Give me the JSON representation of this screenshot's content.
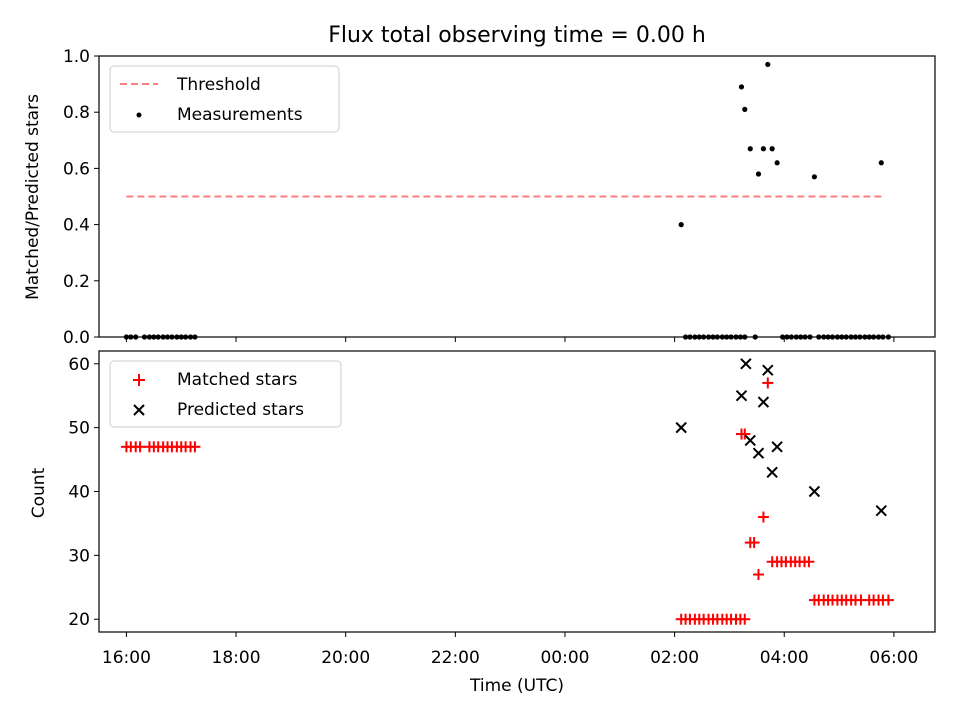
{
  "figure": {
    "title": "Flux total observing time = 0.00 h",
    "xlabel": "Time (UTC)",
    "x_ticks": [
      "16:00",
      "18:00",
      "20:00",
      "22:00",
      "00:00",
      "02:00",
      "04:00",
      "06:00"
    ]
  },
  "chart_data": [
    {
      "type": "scatter",
      "panel": "top",
      "ylabel": "Matched/Predicted stars",
      "ylim": [
        0.0,
        1.0
      ],
      "y_ticks": [
        "0.0",
        "0.2",
        "0.4",
        "0.6",
        "0.8",
        "1.0"
      ],
      "xlim_hours": [
        15.5,
        30.75
      ],
      "legend": {
        "placement": "upper-left",
        "entries": [
          "Threshold",
          "Measurements"
        ]
      },
      "threshold": {
        "name": "Threshold",
        "value": 0.5,
        "x_range_hours": [
          16.0,
          29.8
        ],
        "color": "#ff7f7f",
        "style": "dashed"
      },
      "measurements": {
        "name": "Measurements",
        "color": "#000000",
        "points_hours_value": [
          [
            16.0,
            0
          ],
          [
            16.08,
            0
          ],
          [
            16.17,
            0
          ],
          [
            16.33,
            0
          ],
          [
            16.42,
            0
          ],
          [
            16.5,
            0
          ],
          [
            16.58,
            0
          ],
          [
            16.67,
            0
          ],
          [
            16.75,
            0
          ],
          [
            16.83,
            0
          ],
          [
            16.92,
            0
          ],
          [
            17.0,
            0
          ],
          [
            17.08,
            0
          ],
          [
            17.17,
            0
          ],
          [
            17.25,
            0
          ],
          [
            26.12,
            0.4
          ],
          [
            26.2,
            0
          ],
          [
            26.28,
            0
          ],
          [
            26.37,
            0
          ],
          [
            26.45,
            0
          ],
          [
            26.53,
            0
          ],
          [
            26.62,
            0
          ],
          [
            26.7,
            0
          ],
          [
            26.78,
            0
          ],
          [
            26.87,
            0
          ],
          [
            26.95,
            0
          ],
          [
            27.03,
            0
          ],
          [
            27.12,
            0
          ],
          [
            27.2,
            0
          ],
          [
            27.28,
            0
          ],
          [
            27.22,
            0.89
          ],
          [
            27.28,
            0.81
          ],
          [
            27.38,
            0.67
          ],
          [
            27.47,
            0
          ],
          [
            27.53,
            0.58
          ],
          [
            27.62,
            0.67
          ],
          [
            27.7,
            0.97
          ],
          [
            27.78,
            0.67
          ],
          [
            27.87,
            0.62
          ],
          [
            27.97,
            0
          ],
          [
            28.05,
            0
          ],
          [
            28.13,
            0
          ],
          [
            28.22,
            0
          ],
          [
            28.3,
            0
          ],
          [
            28.38,
            0
          ],
          [
            28.47,
            0
          ],
          [
            28.55,
            0.57
          ],
          [
            28.63,
            0
          ],
          [
            28.72,
            0
          ],
          [
            28.8,
            0
          ],
          [
            28.88,
            0
          ],
          [
            28.97,
            0
          ],
          [
            29.05,
            0
          ],
          [
            29.13,
            0
          ],
          [
            29.22,
            0
          ],
          [
            29.3,
            0
          ],
          [
            29.38,
            0
          ],
          [
            29.47,
            0
          ],
          [
            29.55,
            0
          ],
          [
            29.63,
            0
          ],
          [
            29.72,
            0
          ],
          [
            29.8,
            0
          ],
          [
            29.77,
            0.62
          ],
          [
            29.9,
            0
          ]
        ]
      }
    },
    {
      "type": "scatter",
      "panel": "bottom",
      "ylabel": "Count",
      "ylim": [
        18,
        62
      ],
      "y_ticks": [
        "20",
        "30",
        "40",
        "50",
        "60"
      ],
      "xlim_hours": [
        15.5,
        30.75
      ],
      "legend": {
        "placement": "upper-left",
        "entries": [
          "Matched stars",
          "Predicted stars"
        ]
      },
      "series": [
        {
          "name": "Matched stars",
          "marker": "+",
          "color": "#ff0000",
          "points_hours_value": [
            [
              16.0,
              47
            ],
            [
              16.08,
              47
            ],
            [
              16.17,
              47
            ],
            [
              16.25,
              47
            ],
            [
              16.42,
              47
            ],
            [
              16.5,
              47
            ],
            [
              16.58,
              47
            ],
            [
              16.67,
              47
            ],
            [
              16.75,
              47
            ],
            [
              16.83,
              47
            ],
            [
              16.92,
              47
            ],
            [
              17.0,
              47
            ],
            [
              17.08,
              47
            ],
            [
              17.17,
              47
            ],
            [
              17.25,
              47
            ],
            [
              26.12,
              20
            ],
            [
              26.2,
              20
            ],
            [
              26.28,
              20
            ],
            [
              26.37,
              20
            ],
            [
              26.45,
              20
            ],
            [
              26.53,
              20
            ],
            [
              26.62,
              20
            ],
            [
              26.7,
              20
            ],
            [
              26.78,
              20
            ],
            [
              26.87,
              20
            ],
            [
              26.95,
              20
            ],
            [
              27.03,
              20
            ],
            [
              27.12,
              20
            ],
            [
              27.2,
              20
            ],
            [
              27.28,
              20
            ],
            [
              27.22,
              49
            ],
            [
              27.28,
              49
            ],
            [
              27.38,
              32
            ],
            [
              27.45,
              32
            ],
            [
              27.53,
              27
            ],
            [
              27.62,
              36
            ],
            [
              27.7,
              57
            ],
            [
              27.78,
              29
            ],
            [
              27.87,
              29
            ],
            [
              27.95,
              29
            ],
            [
              28.03,
              29
            ],
            [
              28.12,
              29
            ],
            [
              28.2,
              29
            ],
            [
              28.28,
              29
            ],
            [
              28.37,
              29
            ],
            [
              28.45,
              29
            ],
            [
              28.55,
              23
            ],
            [
              28.63,
              23
            ],
            [
              28.72,
              23
            ],
            [
              28.8,
              23
            ],
            [
              28.88,
              23
            ],
            [
              28.97,
              23
            ],
            [
              29.05,
              23
            ],
            [
              29.13,
              23
            ],
            [
              29.22,
              23
            ],
            [
              29.3,
              23
            ],
            [
              29.4,
              23
            ],
            [
              29.55,
              23
            ],
            [
              29.63,
              23
            ],
            [
              29.72,
              23
            ],
            [
              29.8,
              23
            ],
            [
              29.9,
              23
            ]
          ]
        },
        {
          "name": "Predicted stars",
          "marker": "x",
          "color": "#000000",
          "points_hours_value": [
            [
              26.12,
              50
            ],
            [
              27.22,
              55
            ],
            [
              27.3,
              60
            ],
            [
              27.38,
              48
            ],
            [
              27.53,
              46
            ],
            [
              27.62,
              54
            ],
            [
              27.7,
              59
            ],
            [
              27.78,
              43
            ],
            [
              27.87,
              47
            ],
            [
              28.55,
              40
            ],
            [
              29.77,
              37
            ]
          ]
        }
      ]
    }
  ]
}
